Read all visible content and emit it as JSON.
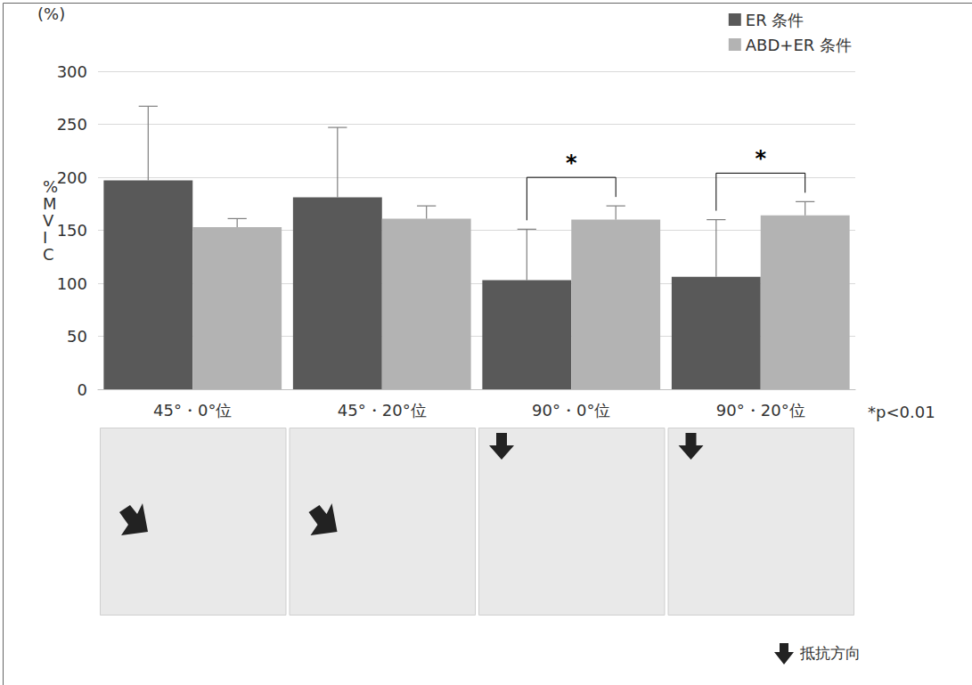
{
  "chart_data": {
    "type": "bar",
    "categories": [
      "45°・0°位",
      "45°・20°位",
      "90°・0°位",
      "90°・20°位"
    ],
    "ylabel": "%MVIC",
    "ylim": [
      0,
      300
    ],
    "yticks": [
      0,
      50,
      100,
      150,
      200,
      250,
      300
    ],
    "grid": true,
    "legend": "top-right",
    "series": [
      {
        "name": "ER 条件",
        "color": "#595959",
        "values": [
          197,
          181,
          103,
          106
        ],
        "errors": [
          70,
          66,
          48,
          54
        ]
      },
      {
        "name": "ABD+ER 条件",
        "color": "#b3b3b3",
        "values": [
          153,
          161,
          160,
          164
        ],
        "errors": [
          8,
          12,
          13,
          13
        ]
      }
    ],
    "annotations": {
      "unit": "(%)",
      "footnote": "*p<0.01",
      "significance": [
        {
          "category": "90°・0°位",
          "text": "*"
        },
        {
          "category": "90°・20°位",
          "text": "*"
        }
      ],
      "arrow_key": "抵抗方向"
    }
  }
}
